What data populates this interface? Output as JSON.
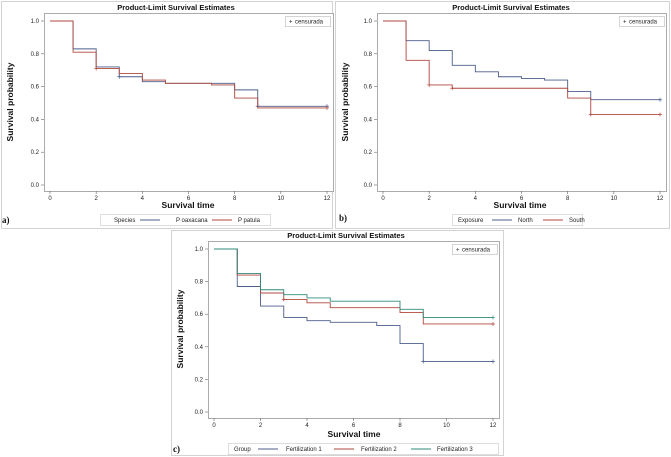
{
  "chart_data": [
    {
      "type": "line",
      "panel_label": "a)",
      "title": "Product-Limit Survival Estimates",
      "xlabel": "Survival time",
      "ylabel": "Survival probability",
      "xlim": [
        0,
        12
      ],
      "ylim": [
        0,
        1
      ],
      "xticks": [
        "0",
        "2",
        "4",
        "6",
        "8",
        "10",
        "12"
      ],
      "yticks": [
        "0.0",
        "0.2",
        "0.4",
        "0.6",
        "0.8",
        "1.0"
      ],
      "censor_legend": "censurada",
      "legend_title": "Species",
      "series": [
        {
          "name": "P oaxacana",
          "color": "#4b5d8a",
          "x": [
            0,
            1,
            2,
            3,
            4,
            5,
            8,
            9,
            12
          ],
          "y": [
            1.0,
            0.83,
            0.72,
            0.66,
            0.63,
            0.62,
            0.58,
            0.48,
            0.48
          ],
          "censored": [
            [
              3,
              0.66
            ],
            [
              9,
              0.48
            ],
            [
              12,
              0.48
            ]
          ]
        },
        {
          "name": "P patula",
          "color": "#b0473d",
          "x": [
            0,
            1,
            2,
            3,
            4,
            5,
            7,
            8,
            9,
            12
          ],
          "y": [
            1.0,
            0.81,
            0.71,
            0.68,
            0.64,
            0.62,
            0.61,
            0.53,
            0.47,
            0.47
          ],
          "censored": [
            [
              2,
              0.71
            ],
            [
              12,
              0.47
            ]
          ]
        }
      ]
    },
    {
      "type": "line",
      "panel_label": "b)",
      "title": "Product-Limit Survival Estimates",
      "xlabel": "Survival time",
      "ylabel": "Survival probability",
      "xlim": [
        0,
        12
      ],
      "ylim": [
        0,
        1
      ],
      "xticks": [
        "0",
        "2",
        "4",
        "6",
        "8",
        "10",
        "12"
      ],
      "yticks": [
        "0.0",
        "0.2",
        "0.4",
        "0.6",
        "0.8",
        "1.0"
      ],
      "censor_legend": "censurada",
      "legend_title": "Exposure",
      "series": [
        {
          "name": "North",
          "color": "#4b5d8a",
          "x": [
            0,
            1,
            2,
            3,
            4,
            5,
            6,
            7,
            8,
            9,
            12
          ],
          "y": [
            1.0,
            0.88,
            0.82,
            0.73,
            0.69,
            0.66,
            0.65,
            0.64,
            0.57,
            0.52,
            0.52
          ],
          "censored": [
            [
              12,
              0.52
            ]
          ]
        },
        {
          "name": "South",
          "color": "#b0473d",
          "x": [
            0,
            1,
            2,
            3,
            8,
            9,
            12
          ],
          "y": [
            1.0,
            0.76,
            0.61,
            0.59,
            0.53,
            0.43,
            0.43
          ],
          "censored": [
            [
              2,
              0.61
            ],
            [
              3,
              0.59
            ],
            [
              9,
              0.43
            ],
            [
              12,
              0.43
            ]
          ]
        }
      ]
    },
    {
      "type": "line",
      "panel_label": "c)",
      "title": "Product-Limit Survival Estimates",
      "xlabel": "Survival time",
      "ylabel": "Survival probability",
      "xlim": [
        0,
        12
      ],
      "ylim": [
        0,
        1
      ],
      "xticks": [
        "0",
        "2",
        "4",
        "6",
        "8",
        "10",
        "12"
      ],
      "yticks": [
        "0.0",
        "0.2",
        "0.4",
        "0.6",
        "0.8",
        "1.0"
      ],
      "censor_legend": "censurada",
      "legend_title": "Group",
      "series": [
        {
          "name": "Fertilization 1",
          "color": "#4b5d8a",
          "x": [
            0,
            1,
            2,
            3,
            4,
            5,
            7,
            8,
            9,
            12
          ],
          "y": [
            1.0,
            0.77,
            0.65,
            0.58,
            0.56,
            0.55,
            0.53,
            0.42,
            0.31,
            0.31
          ],
          "censored": [
            [
              9,
              0.31
            ],
            [
              12,
              0.31
            ]
          ]
        },
        {
          "name": "Fertilization 2",
          "color": "#b0473d",
          "x": [
            0,
            1,
            2,
            3,
            4,
            5,
            8,
            9,
            12
          ],
          "y": [
            1.0,
            0.84,
            0.73,
            0.69,
            0.67,
            0.64,
            0.61,
            0.54,
            0.54
          ],
          "censored": [
            [
              3,
              0.69
            ],
            [
              12,
              0.54
            ]
          ]
        },
        {
          "name": "Fertilization 3",
          "color": "#2e8b7a",
          "x": [
            0,
            1,
            2,
            3,
            4,
            5,
            8,
            9,
            12
          ],
          "y": [
            1.0,
            0.85,
            0.75,
            0.72,
            0.7,
            0.68,
            0.63,
            0.58,
            0.58
          ],
          "censored": [
            [
              12,
              0.58
            ]
          ]
        }
      ]
    }
  ]
}
